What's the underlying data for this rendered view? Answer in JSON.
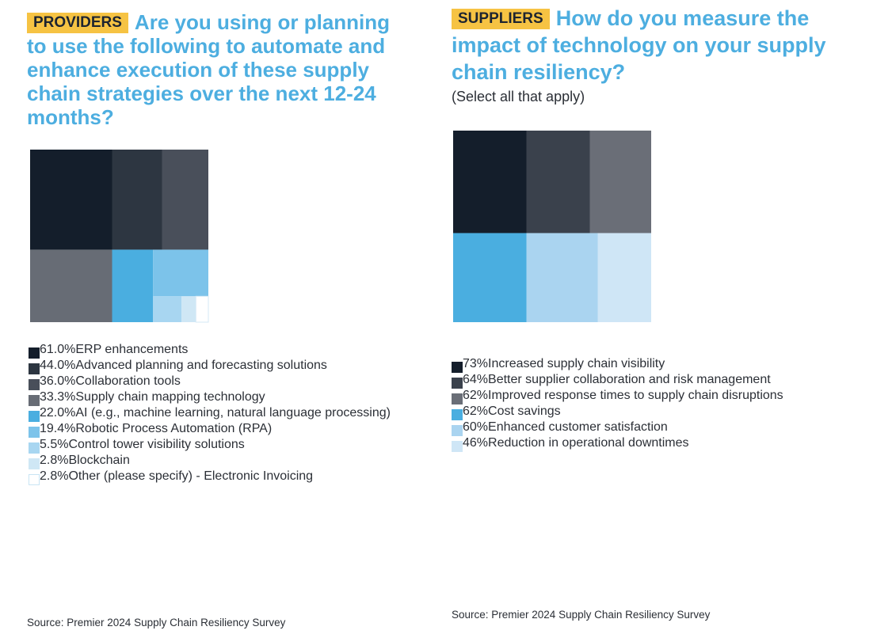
{
  "chart_data": [
    {
      "type": "treemap",
      "tag": "PROVIDERS",
      "title": "Are you using or planning to use the following to automate and enhance execution of these supply chain strategies over the next 12-24 months?",
      "series": [
        {
          "label": "ERP enhancements",
          "value": 61.0,
          "display": "61.0%",
          "color": "#141e2b"
        },
        {
          "label": "Advanced planning and forecasting solutions",
          "value": 44.0,
          "display": "44.0%",
          "color": "#2d3641"
        },
        {
          "label": "Collaboration tools",
          "value": 36.0,
          "display": "36.0%",
          "color": "#494f5a"
        },
        {
          "label": "Supply chain mapping technology",
          "value": 33.3,
          "display": "33.3%",
          "color": "#676c75"
        },
        {
          "label": "AI (e.g., machine learning, natural language processing)",
          "value": 22.0,
          "display": "22.0%",
          "color": "#4aaee0"
        },
        {
          "label": "Robotic Process Automation (RPA)",
          "value": 19.4,
          "display": "19.4%",
          "color": "#7cc3ea"
        },
        {
          "label": "Control tower visibility solutions",
          "value": 5.5,
          "display": "5.5%",
          "color": "#a8d6f1"
        },
        {
          "label": "Blockchain",
          "value": 2.8,
          "display": "2.8%",
          "color": "#cfe7f5"
        },
        {
          "label": "Other (please specify) - Electronic Invoicing",
          "value": 2.8,
          "display": "2.8%",
          "color": "#ffffff"
        }
      ],
      "source": "Source: Premier 2024 Supply Chain Resiliency Survey"
    },
    {
      "type": "treemap",
      "tag": "SUPPLIERS",
      "title": "How do you measure the impact of technology on your supply chain resiliency?",
      "subtitle": "(Select all that apply)",
      "series": [
        {
          "label": "Increased supply chain visibility",
          "value": 73,
          "display": "73%",
          "color": "#141e2b"
        },
        {
          "label": "Better supplier collaboration and risk management",
          "value": 64,
          "display": "64%",
          "color": "#3a414c"
        },
        {
          "label": "Improved response times to supply chain disruptions",
          "value": 62,
          "display": "62%",
          "color": "#6a6e77"
        },
        {
          "label": "Cost savings",
          "value": 62,
          "display": "62%",
          "color": "#4aaee0"
        },
        {
          "label": "Enhanced customer satisfaction",
          "value": 60,
          "display": "60%",
          "color": "#aad4f0"
        },
        {
          "label": "Reduction in operational downtimes",
          "value": 46,
          "display": "46%",
          "color": "#cfe6f6"
        }
      ],
      "source": "Source: Premier 2024 Supply Chain Resiliency Survey"
    }
  ]
}
